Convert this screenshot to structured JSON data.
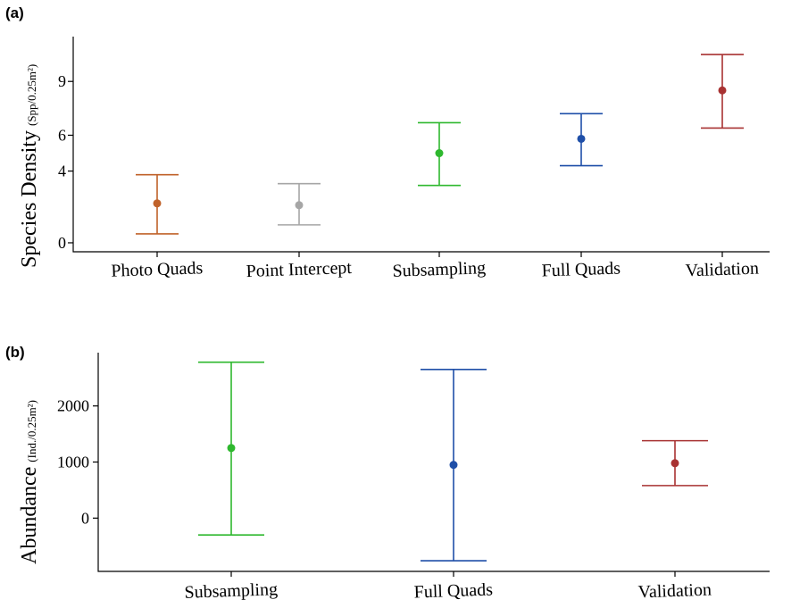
{
  "chart_data": [
    {
      "panel_label": "(a)",
      "type": "scatter",
      "error_bars": true,
      "categories": [
        "Photo Quads",
        "Point Intercept",
        "Subsampling",
        "Full Quads",
        "Validation"
      ],
      "ylabel_main": "Species Density",
      "ylabel_unit": "(Spp/0.25m²)",
      "ytick_values": [
        0,
        4,
        6,
        9
      ],
      "yticks": [
        "0",
        "4",
        "6",
        "9"
      ],
      "ylim": [
        -0.5,
        11.5
      ],
      "points": [
        {
          "category": "Photo Quads",
          "mean": 2.2,
          "lower": 0.5,
          "upper": 3.8,
          "color": "#c0622a"
        },
        {
          "category": "Point Intercept",
          "mean": 2.1,
          "lower": 1.0,
          "upper": 3.3,
          "color": "#a6a6a6"
        },
        {
          "category": "Subsampling",
          "mean": 5.0,
          "lower": 3.2,
          "upper": 6.7,
          "color": "#2eb82e"
        },
        {
          "category": "Full Quads",
          "mean": 5.8,
          "lower": 4.3,
          "upper": 7.2,
          "color": "#1f4fa8"
        },
        {
          "category": "Validation",
          "mean": 8.5,
          "lower": 6.4,
          "upper": 10.5,
          "color": "#a83232"
        }
      ],
      "grid": false,
      "legend": "none"
    },
    {
      "panel_label": "(b)",
      "type": "scatter",
      "error_bars": true,
      "categories": [
        "Subsampling",
        "Full Quads",
        "Validation"
      ],
      "ylabel_main": "Abundance",
      "ylabel_unit": "(Ind./0.25m²)",
      "ytick_values": [
        0,
        1000,
        2000
      ],
      "yticks": [
        "0",
        "1000",
        "2000"
      ],
      "ylim": [
        -950,
        2950
      ],
      "points": [
        {
          "category": "Subsampling",
          "mean": 1250,
          "lower": -300,
          "upper": 2780,
          "color": "#2eb82e"
        },
        {
          "category": "Full Quads",
          "mean": 950,
          "lower": -760,
          "upper": 2650,
          "color": "#1f4fa8"
        },
        {
          "category": "Validation",
          "mean": 980,
          "lower": 580,
          "upper": 1380,
          "color": "#a83232"
        }
      ],
      "grid": false,
      "legend": "none"
    }
  ]
}
